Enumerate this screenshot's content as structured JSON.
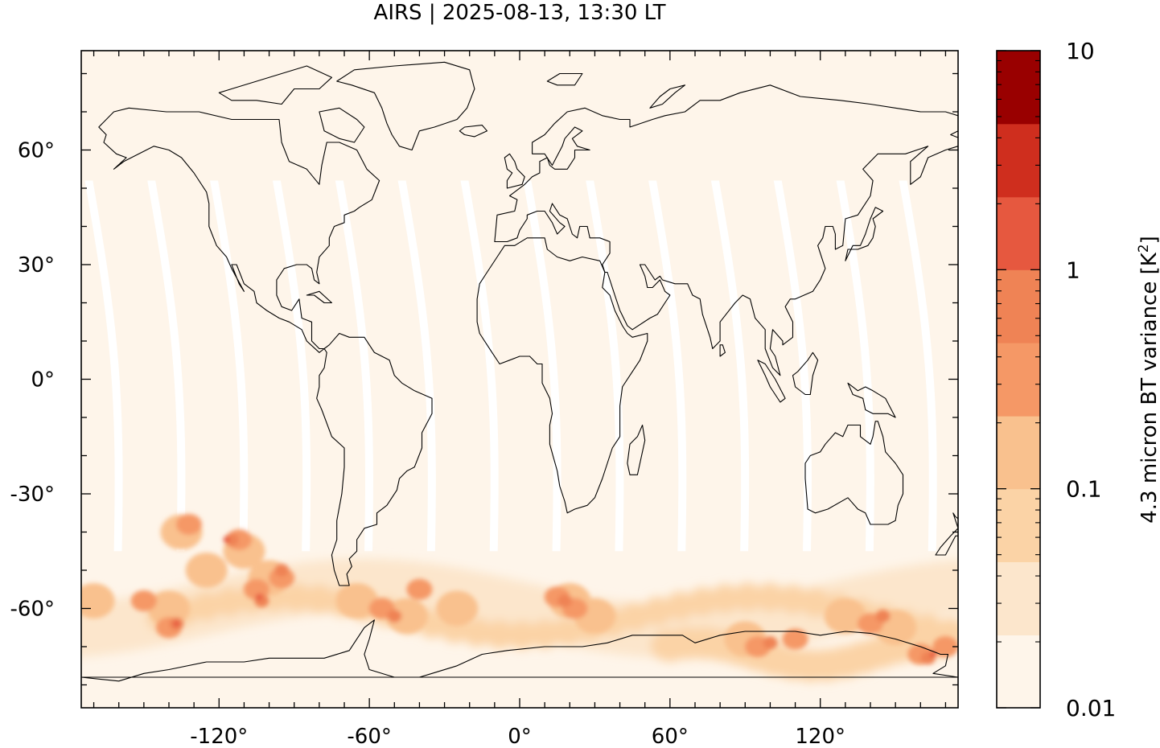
{
  "title": "AIRS | 2025-08-13, 13:30 LT",
  "colorbar": {
    "label": "4.3 micron BT variance [K",
    "label_sup": "2",
    "label_close": "]",
    "scale": "log",
    "range": [
      0.01,
      10
    ],
    "tick_labels": [
      "10",
      "1",
      "0.1",
      "0.01"
    ],
    "tick_values": [
      10,
      1,
      0.1,
      0.01
    ],
    "levels": [
      0.01,
      0.0215,
      0.0464,
      0.1,
      0.215,
      0.464,
      1,
      2.15,
      4.64,
      10
    ],
    "colors": [
      "#fff5eb",
      "#fee6ce",
      "#fdd0a2",
      "#fdae6b",
      "#fd8d3c",
      "#f16913",
      "#e6553a",
      "#cb2d1e",
      "#990000"
    ],
    "display_colors": [
      "#fef5ea",
      "#fce6cc",
      "#fbd3a6",
      "#f9c18e",
      "#f59866",
      "#ef8355",
      "#e6583f",
      "#cf2e1e",
      "#990000"
    ]
  },
  "map": {
    "projection": "equirectangular",
    "lon_range": [
      -175,
      175
    ],
    "lat_range": [
      -86,
      86
    ],
    "x_ticks": [
      {
        "value": -120,
        "label": "-120°"
      },
      {
        "value": -60,
        "label": "-60°"
      },
      {
        "value": 0,
        "label": "0°"
      },
      {
        "value": 60,
        "label": "60°"
      },
      {
        "value": 120,
        "label": "120°"
      }
    ],
    "y_ticks": [
      {
        "value": 60,
        "label": "60°"
      },
      {
        "value": 30,
        "label": "30°"
      },
      {
        "value": 0,
        "label": "0°"
      },
      {
        "value": -30,
        "label": "-30°"
      },
      {
        "value": -60,
        "label": "-60°"
      }
    ],
    "background_color": "#fef5ea",
    "gap_color": "#ffffff",
    "coastline_color": "#000000"
  }
}
